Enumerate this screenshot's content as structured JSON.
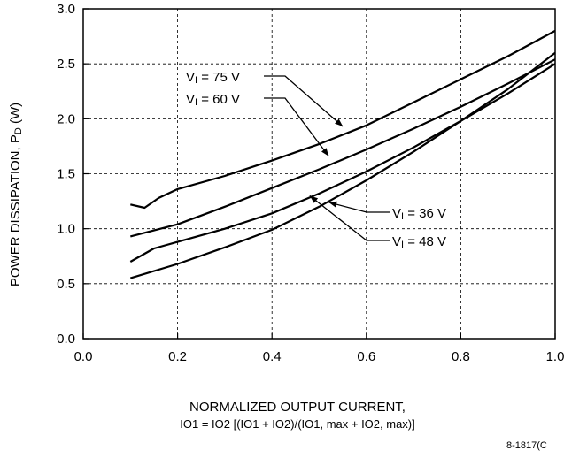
{
  "chart_data": {
    "type": "line",
    "ylabel": "POWER DISSIPATION, P",
    "ylabel_sub": "D",
    "ylabel_unit": " (W)",
    "xlabel_line1": "NORMALIZED OUTPUT CURRENT,",
    "xlabel_line2": "IO1 = IO2 [(IO1 + IO2)/(IO1, max + IO2, max)]",
    "figure_id": "8-1817(C",
    "xlim": [
      0.0,
      1.0
    ],
    "ylim": [
      0.0,
      3.0
    ],
    "x_ticks": [
      "0.0",
      "0.2",
      "0.4",
      "0.6",
      "0.8",
      "1.0"
    ],
    "y_ticks": [
      "0.0",
      "0.5",
      "1.0",
      "1.5",
      "2.0",
      "2.5",
      "3.0"
    ],
    "grid": "dashed",
    "series": [
      {
        "name": "VI = 75 V",
        "x": [
          0.1,
          0.13,
          0.16,
          0.2,
          0.3,
          0.4,
          0.5,
          0.6,
          0.7,
          0.8,
          0.9,
          1.0
        ],
        "y": [
          1.22,
          1.19,
          1.28,
          1.36,
          1.48,
          1.62,
          1.77,
          1.94,
          2.15,
          2.36,
          2.57,
          2.8
        ]
      },
      {
        "name": "VI = 60 V",
        "x": [
          0.1,
          0.2,
          0.3,
          0.4,
          0.5,
          0.6,
          0.7,
          0.8,
          0.9,
          1.0
        ],
        "y": [
          0.93,
          1.04,
          1.2,
          1.37,
          1.54,
          1.72,
          1.91,
          2.11,
          2.32,
          2.54
        ]
      },
      {
        "name": "VI = 48 V",
        "x": [
          0.1,
          0.15,
          0.2,
          0.3,
          0.4,
          0.5,
          0.6,
          0.7,
          0.8,
          0.9,
          1.0
        ],
        "y": [
          0.7,
          0.82,
          0.88,
          1.0,
          1.14,
          1.32,
          1.52,
          1.74,
          1.98,
          2.23,
          2.5
        ]
      },
      {
        "name": "VI = 36 V",
        "x": [
          0.1,
          0.2,
          0.3,
          0.4,
          0.5,
          0.6,
          0.7,
          0.8,
          0.9,
          1.0
        ],
        "y": [
          0.55,
          0.68,
          0.83,
          0.99,
          1.2,
          1.44,
          1.7,
          1.98,
          2.27,
          2.6
        ]
      }
    ],
    "annotations": [
      {
        "label": "VI = 75 V",
        "pre": "V",
        "sub": "I",
        "post": " = 75 V",
        "target": [
          0.55,
          1.93
        ]
      },
      {
        "label": "VI = 60 V",
        "pre": "V",
        "sub": "I",
        "post": " = 60 V",
        "target": [
          0.52,
          1.66
        ]
      },
      {
        "label": "VI = 36 V",
        "pre": "V",
        "sub": "I",
        "post": " = 36 V",
        "target": [
          0.52,
          1.24
        ]
      },
      {
        "label": "VI = 48 V",
        "pre": "V",
        "sub": "I",
        "post": " = 48 V",
        "target": [
          0.48,
          1.3
        ]
      }
    ]
  }
}
